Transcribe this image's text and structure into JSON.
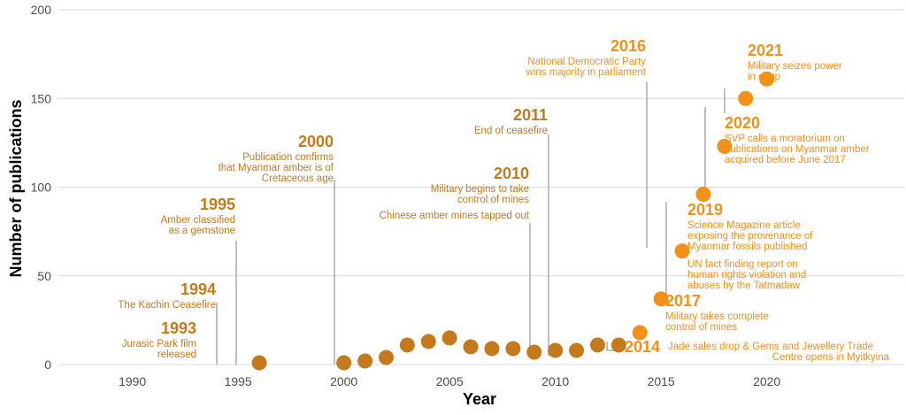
{
  "chart_data": {
    "type": "scatter",
    "xlabel": "Year",
    "ylabel": "Number of publications",
    "xlim": [
      1986.5,
      2026.5
    ],
    "ylim": [
      0,
      200
    ],
    "xticks": [
      1990,
      1995,
      2000,
      2005,
      2010,
      2015,
      2020
    ],
    "yticks": [
      0,
      50,
      100,
      150,
      200
    ],
    "grid": "horizontal",
    "colors": {
      "early": "#c47a1c",
      "late": "#f39019",
      "connector": "#9e9e9e",
      "grid": "#d9d9d9"
    },
    "series": [
      {
        "x": [
          1996,
          2000,
          2001,
          2002,
          2003,
          2004,
          2005,
          2006,
          2007,
          2008,
          2009,
          2010,
          2011,
          2012,
          2013,
          2014,
          2015,
          2016,
          2017,
          2018,
          2019,
          2020
        ],
        "y": [
          1,
          1,
          2,
          4,
          11,
          13,
          15,
          10,
          9,
          9,
          7,
          8,
          8,
          11,
          11,
          18,
          37,
          64,
          96,
          123,
          150,
          161
        ]
      }
    ],
    "annotations": [
      {
        "year": "1993",
        "lines": [
          "Jurasic Park film",
          "released"
        ],
        "x": 1994,
        "color": "#c47a1c"
      },
      {
        "year": "1994",
        "lines": [
          "The Kachin Ceasefire"
        ],
        "x": 1994,
        "color": "#c47a1c"
      },
      {
        "year": "1995",
        "lines": [
          "Amber classified",
          "as a gemstone"
        ],
        "x": 1995,
        "color": "#c47a1c"
      },
      {
        "year": "2000",
        "lines": [
          "Publication confirms",
          "that Myanmar amber is of",
          "Cretaceous age"
        ],
        "x": 2000,
        "color": "#c47a1c"
      },
      {
        "year": "2010",
        "lines": [
          "Military begins to take",
          "control of mines"
        ],
        "x": 2010,
        "color": "#c47a1c"
      },
      {
        "year": "",
        "lines": [
          "Chinese amber mines tapped out"
        ],
        "x": 2010,
        "color": "#c47a1c"
      },
      {
        "year": "2011",
        "lines": [
          "End of ceasefire"
        ],
        "x": 2011,
        "color": "#c47a1c"
      },
      {
        "year": "2014",
        "lines": [
          "Jade sales drop & Gems and Jewellery Trade",
          "Centre opens in Myitkyina"
        ],
        "x": 2014,
        "color": "#f39019"
      },
      {
        "year": "2016",
        "lines": [
          "National Democratic Party",
          "wins majority in parliament"
        ],
        "x": 2016,
        "color": "#f39019"
      },
      {
        "year": "2017",
        "lines": [
          "Military takes complete",
          "control of mines"
        ],
        "x": 2017,
        "color": "#f39019"
      },
      {
        "year": "",
        "lines": [
          "UN fact finding report on",
          "human rights violation and",
          "abuses by the Tatmadaw"
        ],
        "x": 2017,
        "color": "#f39019"
      },
      {
        "year": "2019",
        "lines": [
          "Science Magazine article",
          "exposing the provenance of",
          "Myanmar fossils published"
        ],
        "x": 2019,
        "color": "#f39019"
      },
      {
        "year": "2020",
        "lines": [
          "SVP calls a moratorium on",
          "publications on Myanmar amber",
          "acquired before June 2017"
        ],
        "x": 2020,
        "color": "#f39019"
      },
      {
        "year": "2021",
        "lines": [
          "Military seizes power",
          "in coup"
        ],
        "x": 2021,
        "color": "#f39019"
      }
    ]
  }
}
